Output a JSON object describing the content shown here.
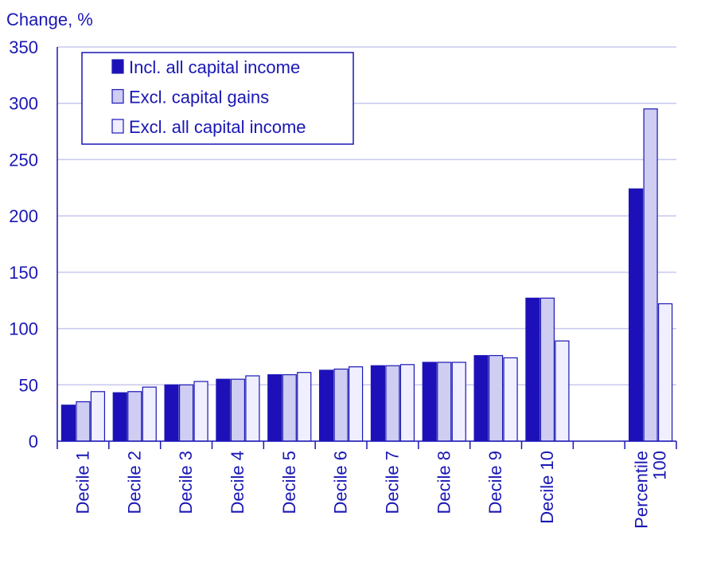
{
  "colors": {
    "text": "#1a17b4",
    "axis": "#1a17b4",
    "grid": "#c8c8ef",
    "series": [
      "#1e10b8",
      "#cfcdf2",
      "#f0efff"
    ],
    "bar_stroke": "#1a17b4"
  },
  "chart_data": {
    "type": "bar",
    "title": "",
    "ylabel": "Change, %",
    "xlabel": "",
    "ylim": [
      0,
      350
    ],
    "yticks": [
      0,
      50,
      100,
      150,
      200,
      250,
      300,
      350
    ],
    "grid": true,
    "legend_position": "top-left",
    "categories": [
      "Decile 1",
      "Decile 2",
      "Decile 3",
      "Decile 4",
      "Decile 5",
      "Decile 6",
      "Decile 7",
      "Decile 8",
      "Decile 9",
      "Decile 10",
      "",
      "Percentile 100"
    ],
    "series": [
      {
        "name": "Incl. all capital income",
        "values": [
          32,
          43,
          50,
          55,
          59,
          63,
          67,
          70,
          76,
          127,
          null,
          224
        ]
      },
      {
        "name": "Excl. capital gains",
        "values": [
          35,
          44,
          50,
          55,
          59,
          64,
          67,
          70,
          76,
          127,
          null,
          295
        ]
      },
      {
        "name": "Excl. all capital income",
        "values": [
          44,
          48,
          53,
          58,
          61,
          66,
          68,
          70,
          74,
          89,
          null,
          122
        ]
      }
    ]
  }
}
